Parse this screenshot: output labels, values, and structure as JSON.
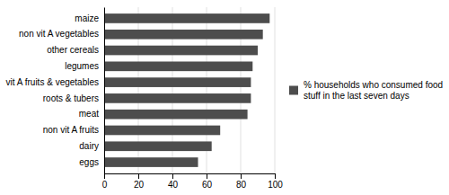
{
  "chart_data": {
    "type": "bar",
    "orientation": "horizontal",
    "categories": [
      "eggs",
      "dairy",
      "non vit A fruits",
      "meat",
      "roots & tubers",
      "vit A fruits & vegetables",
      "legumes",
      "other cereals",
      "non vit A vegetables",
      "maize"
    ],
    "series": [
      {
        "name": "% households who consumed food\nstuff in the last seven days",
        "color": "#4d4d4d",
        "values": [
          55,
          63,
          68,
          84,
          86,
          86,
          87,
          90,
          93,
          97
        ]
      }
    ],
    "xlim": [
      0,
      100
    ],
    "xticks": [
      0,
      20,
      40,
      60,
      80,
      100
    ],
    "grid": true,
    "legend": "right"
  }
}
